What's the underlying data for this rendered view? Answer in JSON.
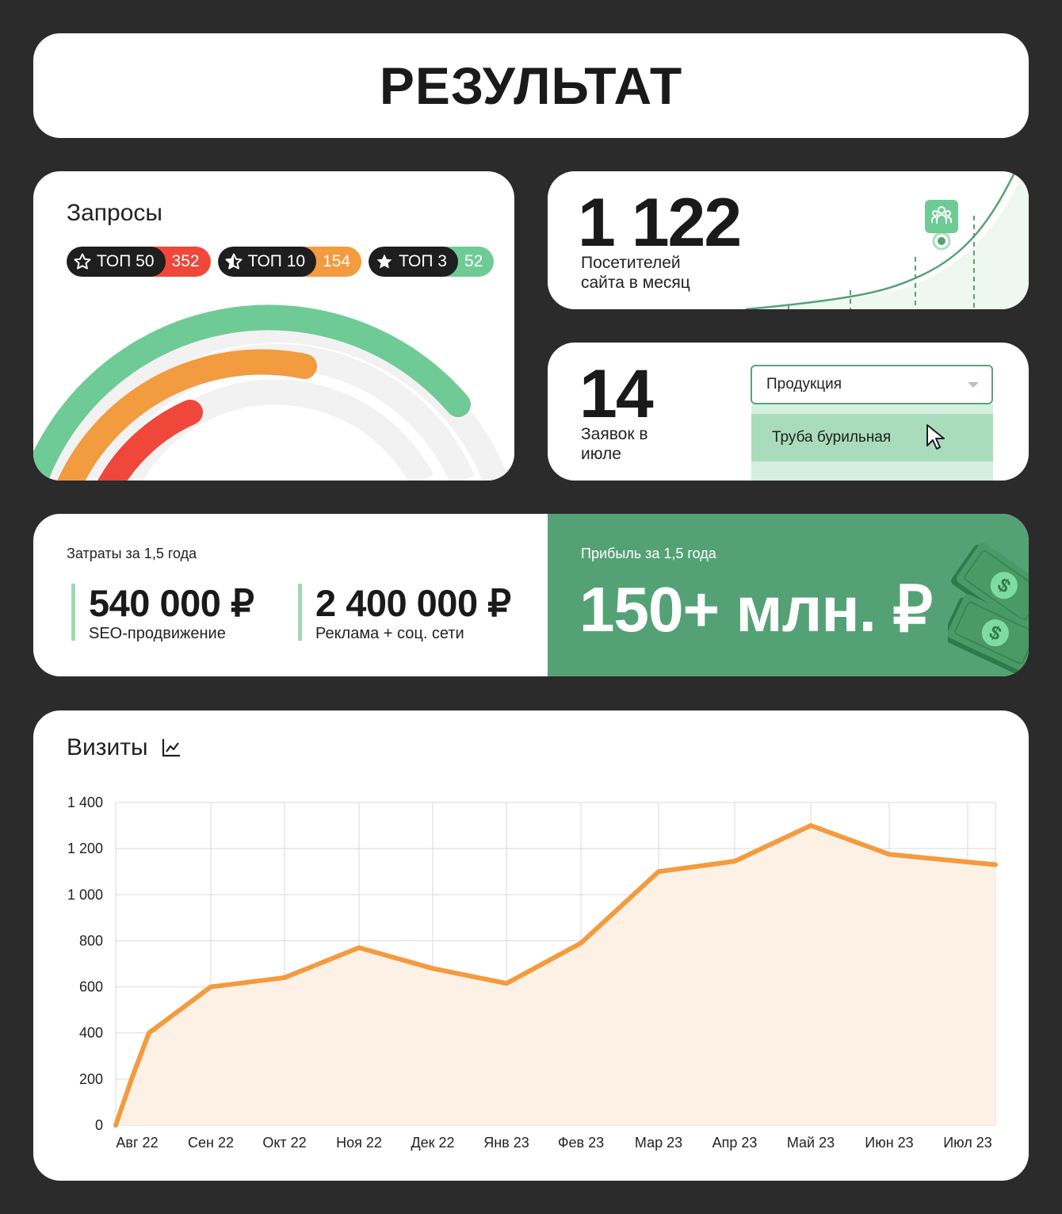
{
  "title": "РЕЗУЛЬТАТ",
  "queries": {
    "heading": "Запросы",
    "pills": [
      {
        "label": "ТОП 50",
        "count": "352",
        "color": "#ef473a",
        "icon": "star-outline-icon"
      },
      {
        "label": "ТОП 10",
        "count": "154",
        "color": "#f39b3f",
        "icon": "star-half-icon"
      },
      {
        "label": "ТОП 3",
        "count": "52",
        "color": "#6fcb95",
        "icon": "star-filled-icon"
      }
    ],
    "gauge_colors": {
      "top3": "#6fcb95",
      "top10": "#f39b3f",
      "top50": "#ef473a",
      "track": "#f2f2f2"
    }
  },
  "visitors": {
    "value": "1 122",
    "label_line1": "Посетителей",
    "label_line2": "сайта в месяц",
    "icon": "users-icon"
  },
  "leads": {
    "value": "14",
    "label_line1": "Заявок в",
    "label_line2": "июле",
    "dropdown_value": "Продукция",
    "option_highlighted": "Труба бурильная",
    "cursor_icon": "cursor-arrow-icon"
  },
  "costs": {
    "heading": "Затраты за 1,5 года",
    "items": [
      {
        "value": "540 000 ₽",
        "caption": "SEO-продвижение"
      },
      {
        "value": "2 400 000 ₽",
        "caption": "Реклама + соц. сети"
      }
    ]
  },
  "profit": {
    "heading": "Прибыль за 1,5 года",
    "value": "150+ млн. ₽",
    "icon": "money-bills-icon"
  },
  "visits": {
    "heading": "Визиты",
    "icon": "line-chart-icon"
  },
  "chart_data": {
    "type": "area",
    "title": "Визиты",
    "categories": [
      "Авг 22",
      "Сен 22",
      "Окт 22",
      "Ноя 22",
      "Дек 22",
      "Янв 23",
      "Фев 23",
      "Мар 23",
      "Апр 23",
      "Май 23",
      "Июн 23",
      "Июл 23"
    ],
    "points": [
      {
        "x": "Авг 22",
        "y": 0
      },
      {
        "x": "Авг 22",
        "y": 200
      },
      {
        "x": "Авг 22",
        "y": 400
      },
      {
        "x": "Сен 22",
        "y": 600
      },
      {
        "x": "Окт 22",
        "y": 640
      },
      {
        "x": "Ноя 22",
        "y": 770
      },
      {
        "x": "Дек 22",
        "y": 680
      },
      {
        "x": "Янв 23",
        "y": 615
      },
      {
        "x": "Фев 23",
        "y": 790
      },
      {
        "x": "Мар 23",
        "y": 1100
      },
      {
        "x": "Апр 23",
        "y": 1145
      },
      {
        "x": "Май 23",
        "y": 1300
      },
      {
        "x": "Июн 23",
        "y": 1175
      },
      {
        "x": "Июл 23",
        "y": 1130
      }
    ],
    "yticks": [
      "0",
      "200",
      "400",
      "600",
      "800",
      "1 000",
      "1 200",
      "1 400"
    ],
    "ylim": [
      0,
      1400
    ],
    "line_color": "#f39b3f",
    "fill_color": "#fdf1e6",
    "grid": true
  }
}
